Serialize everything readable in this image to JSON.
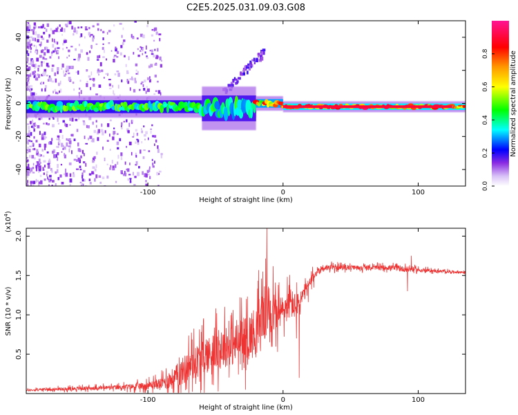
{
  "chart_data": [
    {
      "type": "heatmap",
      "title": "C2E5.2025.031.09.03.G08",
      "xlabel": "Height of straight line (km)",
      "ylabel": "Frequency (Hz)",
      "xlim": [
        -190,
        135
      ],
      "ylim": [
        -50,
        50
      ],
      "xticks": [
        -100,
        0,
        100
      ],
      "xtick_labels": [
        "-100",
        "0",
        "100"
      ],
      "yticks": [
        -40,
        -20,
        0,
        20,
        40
      ],
      "ytick_labels": [
        "-40",
        "-20",
        "0",
        "20",
        "40"
      ],
      "colorbar": {
        "label": "Normalized spectral amplitude",
        "range": [
          0,
          1
        ],
        "ticks": [
          0.0,
          0.2,
          0.4,
          0.6,
          0.8
        ],
        "tick_labels": [
          "0.0",
          "0.2",
          "0.4",
          "0.6",
          "0.8"
        ],
        "colormap": [
          "#ffffff",
          "#8a2be2",
          "#0000ff",
          "#00ffff",
          "#00ff00",
          "#ffff00",
          "#ff7f00",
          "#ff0000",
          "#ff1493"
        ]
      },
      "ridge": [
        {
          "x_range": [
            -190,
            -20
          ],
          "freq_center": -2,
          "freq_halfwidth": 3,
          "peak_amplitude": 0.55
        },
        {
          "x_range": [
            -60,
            -20
          ],
          "freq_center": -3,
          "freq_halfwidth": 6,
          "peak_amplitude": 0.5
        },
        {
          "x_range": [
            -20,
            0
          ],
          "freq_center": 0,
          "freq_halfwidth": 2,
          "peak_amplitude": 0.85
        },
        {
          "x_range": [
            0,
            135
          ],
          "freq_center": -2,
          "freq_halfwidth": 1.5,
          "peak_amplitude": 0.95
        }
      ]
    },
    {
      "type": "line",
      "xlabel": "Height of straight line (km)",
      "ylabel": "SNR (10 * v/v)",
      "y_multiplier": "(x10",
      "y_multiplier_exponent": "4",
      "xlim": [
        -190,
        135
      ],
      "ylim": [
        0,
        21000
      ],
      "xticks": [
        -100,
        0,
        100
      ],
      "xtick_labels": [
        "-100",
        "0",
        "100"
      ],
      "yticks": [
        5000,
        10000,
        15000,
        20000
      ],
      "ytick_labels": [
        "0.5",
        "1.0",
        "1.5",
        "2.0"
      ],
      "series": [
        {
          "name": "SNR",
          "color": "#ee3333",
          "x": [
            -190,
            -180,
            -160,
            -140,
            -120,
            -100,
            -90,
            -80,
            -70,
            -60,
            -50,
            -40,
            -30,
            -20,
            -15,
            -10,
            -5,
            0,
            5,
            10,
            15,
            20,
            25,
            30,
            40,
            50,
            60,
            70,
            80,
            90,
            95,
            100,
            110,
            120,
            135
          ],
          "y": [
            400,
            500,
            600,
            700,
            800,
            1000,
            1300,
            2000,
            3500,
            4500,
            5500,
            6000,
            6500,
            8000,
            10000,
            11000,
            10000,
            10500,
            11500,
            11000,
            12500,
            14000,
            15500,
            16000,
            16000,
            16000,
            16000,
            16000,
            16000,
            15800,
            15800,
            15700,
            15600,
            15500,
            15400
          ],
          "noise": [
            150,
            200,
            250,
            300,
            350,
            600,
            900,
            1800,
            2500,
            2800,
            3000,
            3200,
            3500,
            4000,
            4500,
            4000,
            3000,
            2500,
            2500,
            2000,
            1500,
            1000,
            700,
            500,
            400,
            350,
            350,
            350,
            400,
            450,
            400,
            300,
            250,
            200,
            200
          ],
          "spikes": [
            {
              "x": -12,
              "y": 21000
            },
            {
              "x": -15,
              "y": 15500
            },
            {
              "x": 12,
              "y": 2000
            },
            {
              "x": 10,
              "y": 7000
            },
            {
              "x": 92,
              "y": 13000
            },
            {
              "x": 95,
              "y": 17500
            }
          ]
        }
      ]
    }
  ]
}
